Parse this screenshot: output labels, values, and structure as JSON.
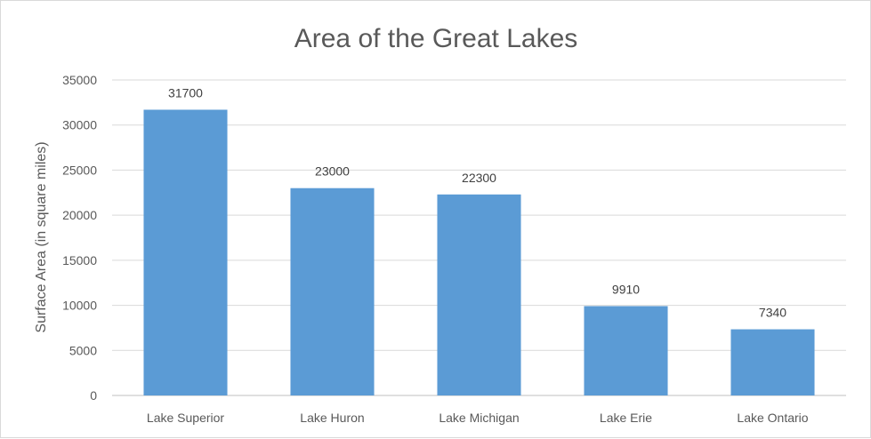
{
  "chart_data": {
    "type": "bar",
    "title": "Area of the Great Lakes",
    "xlabel": "",
    "ylabel": "Surface Area (in square miles)",
    "categories": [
      "Lake Superior",
      "Lake Huron",
      "Lake Michigan",
      "Lake Erie",
      "Lake Ontario"
    ],
    "values": [
      31700,
      23000,
      22300,
      9910,
      7340
    ],
    "data_labels": [
      "31700",
      "23000",
      "22300",
      "9910",
      "7340"
    ],
    "ylim": [
      0,
      35000
    ],
    "yticks": [
      0,
      5000,
      10000,
      15000,
      20000,
      25000,
      30000,
      35000
    ],
    "ytick_labels": [
      "0",
      "5000",
      "10000",
      "15000",
      "20000",
      "25000",
      "30000",
      "35000"
    ],
    "grid": true,
    "legend": "none",
    "bar_color": "#5b9bd5"
  }
}
